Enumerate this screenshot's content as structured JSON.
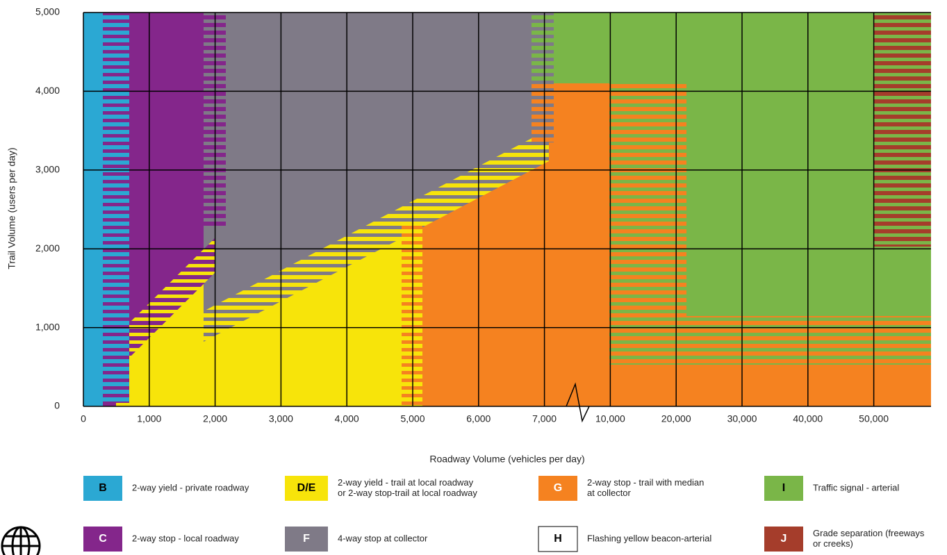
{
  "chart_data": {
    "type": "region",
    "xlabel": "Roadway Volume (vehicles per day)",
    "ylabel": "Trail Volume (users per day)",
    "xticks": [
      0,
      {
        "value": 1000,
        "label": "1,000"
      },
      {
        "value": 2000,
        "label": "2,000"
      },
      {
        "value": 3000,
        "label": "3,000"
      },
      {
        "value": 4000,
        "label": "4,000"
      },
      {
        "value": 5000,
        "label": "5,000"
      },
      {
        "value": 6000,
        "label": "6,000"
      },
      {
        "value": 7000,
        "label": "7,000"
      },
      {
        "value": 10000,
        "label": "10,000"
      },
      {
        "value": 20000,
        "label": "20,000"
      },
      {
        "value": 30000,
        "label": "30,000"
      },
      {
        "value": 40000,
        "label": "40,000"
      },
      {
        "value": 50000,
        "label": "50,000"
      }
    ],
    "ylim": [
      0,
      5000
    ],
    "yticks": [
      0,
      {
        "value": 1000,
        "label": "1,000"
      },
      {
        "value": 2000,
        "label": "2,000"
      },
      {
        "value": 3000,
        "label": "3,000"
      },
      {
        "value": 4000,
        "label": "4,000"
      },
      {
        "value": 5000,
        "label": "5,000"
      }
    ],
    "grid": true,
    "zones": [
      {
        "code": "B",
        "lines": [
          "2-way yield - private roadway"
        ],
        "color": "#2ba8d3"
      },
      {
        "code": "D/E",
        "lines": [
          "2-way yield - trail at local roadway",
          "or 2-way stop-trail at local roadway"
        ],
        "color": "#f7e40a"
      },
      {
        "code": "G",
        "lines": [
          "2-way stop - trail with median",
          "at collector"
        ],
        "color": "#f58220"
      },
      {
        "code": "I",
        "lines": [
          "Traffic signal - arterial"
        ],
        "color": "#7ab648"
      },
      {
        "code": "C",
        "lines": [
          "2-way stop - local roadway"
        ],
        "color": "#84268b"
      },
      {
        "code": "F",
        "lines": [
          "4-way stop at collector"
        ],
        "color": "#7f7a87"
      },
      {
        "code": "H",
        "lines": [
          "Flashing yellow beacon-arterial"
        ],
        "color": "#ffffff"
      },
      {
        "code": "J",
        "lines": [
          "Grade separation (freeways",
          "or creeks)"
        ],
        "color": "#a53d2b"
      }
    ]
  }
}
